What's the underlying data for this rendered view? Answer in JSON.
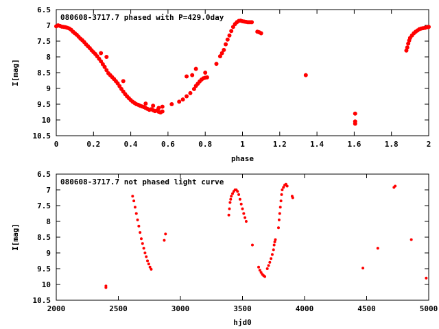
{
  "chart_data": [
    {
      "type": "scatter",
      "title": "080608-3717.7 phased with P=429.0day",
      "xlabel": "phase",
      "ylabel": "I[mag]",
      "xlim": [
        0,
        2
      ],
      "ylim": [
        10.5,
        6.5
      ],
      "y_inverted": true,
      "grid": false,
      "xticks": [
        "0",
        "0.2",
        "0.4",
        "0.6",
        "0.8",
        "1",
        "1.2",
        "1.4",
        "1.6",
        "1.8",
        "2"
      ],
      "yticks": [
        "6.5",
        "7",
        "7.5",
        "8",
        "8.5",
        "9",
        "9.5",
        "10",
        "10.5"
      ],
      "marker_color": "#ff0000",
      "points": [
        [
          0.0,
          7.03
        ],
        [
          0.01,
          7.0
        ],
        [
          0.02,
          7.02
        ],
        [
          0.03,
          7.04
        ],
        [
          0.04,
          7.05
        ],
        [
          0.05,
          7.06
        ],
        [
          0.06,
          7.08
        ],
        [
          0.07,
          7.1
        ],
        [
          0.08,
          7.14
        ],
        [
          0.09,
          7.2
        ],
        [
          0.1,
          7.25
        ],
        [
          0.11,
          7.3
        ],
        [
          0.12,
          7.36
        ],
        [
          0.13,
          7.42
        ],
        [
          0.14,
          7.47
        ],
        [
          0.15,
          7.53
        ],
        [
          0.16,
          7.6
        ],
        [
          0.17,
          7.66
        ],
        [
          0.18,
          7.72
        ],
        [
          0.19,
          7.79
        ],
        [
          0.2,
          7.85
        ],
        [
          0.21,
          7.91
        ],
        [
          0.22,
          7.98
        ],
        [
          0.23,
          8.06
        ],
        [
          0.24,
          8.14
        ],
        [
          0.25,
          8.23
        ],
        [
          0.26,
          8.32
        ],
        [
          0.27,
          8.42
        ],
        [
          0.28,
          8.52
        ],
        [
          0.29,
          8.58
        ],
        [
          0.3,
          8.64
        ],
        [
          0.31,
          8.7
        ],
        [
          0.32,
          8.77
        ],
        [
          0.33,
          8.84
        ],
        [
          0.34,
          8.93
        ],
        [
          0.35,
          9.02
        ],
        [
          0.36,
          9.1
        ],
        [
          0.37,
          9.18
        ],
        [
          0.38,
          9.25
        ],
        [
          0.39,
          9.31
        ],
        [
          0.4,
          9.37
        ],
        [
          0.41,
          9.42
        ],
        [
          0.42,
          9.46
        ],
        [
          0.43,
          9.5
        ],
        [
          0.44,
          9.52
        ],
        [
          0.45,
          9.55
        ],
        [
          0.46,
          9.57
        ],
        [
          0.47,
          9.59
        ],
        [
          0.48,
          9.62
        ],
        [
          0.49,
          9.65
        ],
        [
          0.5,
          9.68
        ],
        [
          0.51,
          9.66
        ],
        [
          0.52,
          9.69
        ],
        [
          0.53,
          9.72
        ],
        [
          0.54,
          9.7
        ],
        [
          0.55,
          9.74
        ],
        [
          0.56,
          9.76
        ],
        [
          0.57,
          9.73
        ],
        [
          0.27,
          8.0
        ],
        [
          0.24,
          7.88
        ],
        [
          0.36,
          8.77
        ],
        [
          0.48,
          9.48
        ],
        [
          0.52,
          9.55
        ],
        [
          0.55,
          9.62
        ],
        [
          0.57,
          9.58
        ],
        [
          0.62,
          9.5
        ],
        [
          0.66,
          9.42
        ],
        [
          0.68,
          9.35
        ],
        [
          0.7,
          9.25
        ],
        [
          0.72,
          9.15
        ],
        [
          0.74,
          9.02
        ],
        [
          0.75,
          8.92
        ],
        [
          0.76,
          8.85
        ],
        [
          0.77,
          8.78
        ],
        [
          0.78,
          8.72
        ],
        [
          0.79,
          8.68
        ],
        [
          0.8,
          8.66
        ],
        [
          0.81,
          8.65
        ],
        [
          0.7,
          8.62
        ],
        [
          0.73,
          8.58
        ],
        [
          0.75,
          8.38
        ],
        [
          0.8,
          8.5
        ],
        [
          0.86,
          8.22
        ],
        [
          0.88,
          7.98
        ],
        [
          0.89,
          7.88
        ],
        [
          0.9,
          7.78
        ],
        [
          0.91,
          7.6
        ],
        [
          0.92,
          7.45
        ],
        [
          0.93,
          7.32
        ],
        [
          0.94,
          7.18
        ],
        [
          0.95,
          7.05
        ],
        [
          0.96,
          6.96
        ],
        [
          0.97,
          6.9
        ],
        [
          0.98,
          6.86
        ],
        [
          0.99,
          6.85
        ],
        [
          1.0,
          6.87
        ],
        [
          1.01,
          6.88
        ],
        [
          1.02,
          6.89
        ],
        [
          1.03,
          6.9
        ],
        [
          1.04,
          6.9
        ],
        [
          1.05,
          6.9
        ],
        [
          1.08,
          7.2
        ],
        [
          1.09,
          7.22
        ],
        [
          1.1,
          7.25
        ],
        [
          1.34,
          8.58
        ],
        [
          1.605,
          9.8
        ],
        [
          1.605,
          10.05
        ],
        [
          1.605,
          10.12
        ],
        [
          1.88,
          7.8
        ],
        [
          1.885,
          7.7
        ],
        [
          1.89,
          7.58
        ],
        [
          1.895,
          7.48
        ],
        [
          1.9,
          7.4
        ],
        [
          1.91,
          7.32
        ],
        [
          1.92,
          7.25
        ],
        [
          1.93,
          7.2
        ],
        [
          1.94,
          7.16
        ],
        [
          1.95,
          7.12
        ],
        [
          1.96,
          7.1
        ],
        [
          1.97,
          7.09
        ],
        [
          1.98,
          7.08
        ],
        [
          1.99,
          7.06
        ],
        [
          2.0,
          7.05
        ]
      ]
    },
    {
      "type": "scatter",
      "title": "080608-3717.7 not phased light curve",
      "xlabel": "hjd0",
      "ylabel": "I[mag]",
      "xlim": [
        2000,
        5000
      ],
      "ylim": [
        10.5,
        6.5
      ],
      "y_inverted": true,
      "grid": false,
      "xticks": [
        "2000",
        "2500",
        "3000",
        "3500",
        "4000",
        "4500",
        "5000"
      ],
      "yticks": [
        "6.5",
        "7",
        "7.5",
        "8",
        "8.5",
        "9",
        "9.5",
        "10",
        "10.5"
      ],
      "marker_color": "#ff0000",
      "points": [
        [
          2400,
          10.05
        ],
        [
          2400,
          10.1
        ],
        [
          2615,
          7.2
        ],
        [
          2625,
          7.35
        ],
        [
          2635,
          7.55
        ],
        [
          2645,
          7.75
        ],
        [
          2655,
          7.95
        ],
        [
          2665,
          8.15
        ],
        [
          2675,
          8.35
        ],
        [
          2685,
          8.55
        ],
        [
          2695,
          8.7
        ],
        [
          2705,
          8.85
        ],
        [
          2715,
          9.0
        ],
        [
          2725,
          9.12
        ],
        [
          2735,
          9.25
        ],
        [
          2745,
          9.35
        ],
        [
          2755,
          9.45
        ],
        [
          2765,
          9.52
        ],
        [
          2870,
          8.6
        ],
        [
          2880,
          8.4
        ],
        [
          3390,
          7.8
        ],
        [
          3395,
          7.6
        ],
        [
          3400,
          7.4
        ],
        [
          3405,
          7.3
        ],
        [
          3410,
          7.2
        ],
        [
          3420,
          7.12
        ],
        [
          3430,
          7.05
        ],
        [
          3440,
          7.0
        ],
        [
          3450,
          7.0
        ],
        [
          3460,
          7.05
        ],
        [
          3470,
          7.15
        ],
        [
          3480,
          7.3
        ],
        [
          3490,
          7.45
        ],
        [
          3500,
          7.6
        ],
        [
          3510,
          7.75
        ],
        [
          3520,
          7.88
        ],
        [
          3530,
          8.0
        ],
        [
          3580,
          8.75
        ],
        [
          3630,
          9.45
        ],
        [
          3640,
          9.55
        ],
        [
          3650,
          9.62
        ],
        [
          3660,
          9.68
        ],
        [
          3670,
          9.72
        ],
        [
          3680,
          9.75
        ],
        [
          3700,
          9.5
        ],
        [
          3710,
          9.4
        ],
        [
          3720,
          9.3
        ],
        [
          3730,
          9.18
        ],
        [
          3740,
          9.05
        ],
        [
          3750,
          8.9
        ],
        [
          3755,
          8.75
        ],
        [
          3760,
          8.65
        ],
        [
          3765,
          8.58
        ],
        [
          3790,
          8.2
        ],
        [
          3795,
          7.95
        ],
        [
          3800,
          7.75
        ],
        [
          3805,
          7.55
        ],
        [
          3810,
          7.35
        ],
        [
          3815,
          7.15
        ],
        [
          3820,
          7.0
        ],
        [
          3830,
          6.92
        ],
        [
          3840,
          6.85
        ],
        [
          3850,
          6.82
        ],
        [
          3860,
          6.88
        ],
        [
          3900,
          7.2
        ],
        [
          3905,
          7.25
        ],
        [
          4470,
          9.48
        ],
        [
          4590,
          8.85
        ],
        [
          4720,
          6.92
        ],
        [
          4730,
          6.88
        ],
        [
          4860,
          8.58
        ],
        [
          4980,
          9.8
        ]
      ]
    }
  ]
}
